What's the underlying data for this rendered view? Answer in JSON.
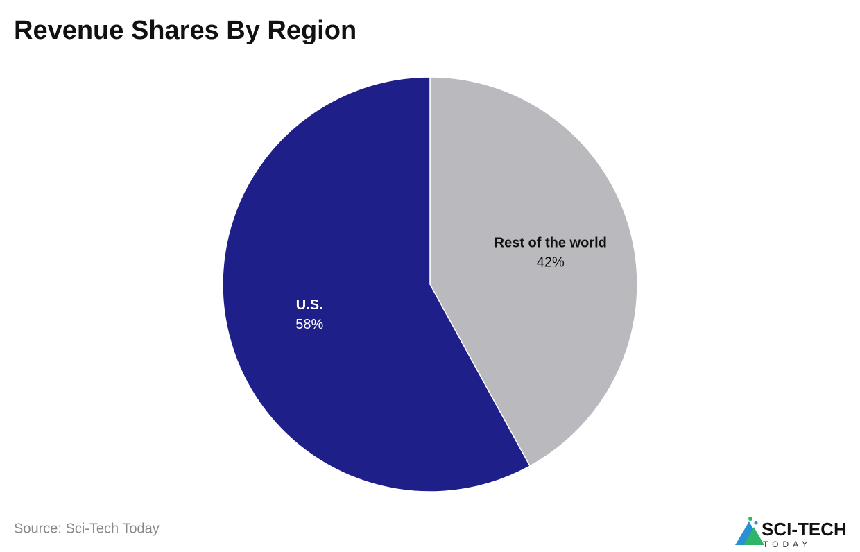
{
  "chart_data": {
    "type": "pie",
    "title": "Revenue Shares By Region",
    "categories": [
      "Rest of the world",
      "U.S."
    ],
    "values": [
      42,
      58
    ],
    "value_labels": [
      "42%",
      "58%"
    ],
    "colors": [
      "#b9b9be",
      "#1f1f8a"
    ],
    "source": "Source: Sci-Tech Today"
  },
  "logo": {
    "name": "SCI-TECH",
    "tagline": "TODAY"
  }
}
